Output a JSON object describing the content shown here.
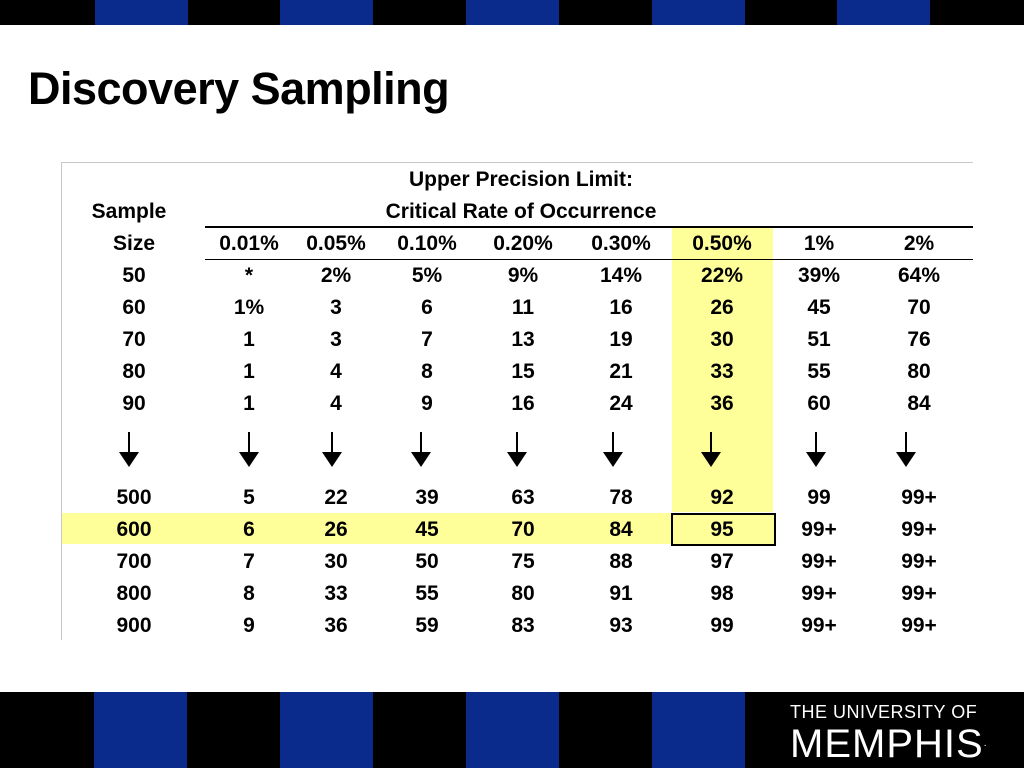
{
  "colors": {
    "black": "#000000",
    "blue": "#0a2a8c",
    "highlight": "#ffff99"
  },
  "title": "Discovery Sampling",
  "table": {
    "header_line1": "Upper Precision Limit:",
    "header_line2": "Critical Rate of Occurrence",
    "sample_label1": "Sample",
    "sample_label2": "Size",
    "rates": [
      "0.01%",
      "0.05%",
      "0.10%",
      "0.20%",
      "0.30%",
      "0.50%",
      "1%",
      "2%"
    ],
    "highlighted_column": "0.50%",
    "highlighted_row": "600",
    "boxed_cell": "95",
    "rows_top": [
      {
        "size": "50",
        "values": [
          "*",
          "2%",
          "5%",
          "9%",
          "14%",
          "22%",
          "39%",
          "64%"
        ]
      },
      {
        "size": "60",
        "values": [
          "1%",
          "3",
          "6",
          "11",
          "16",
          "26",
          "45",
          "70"
        ]
      },
      {
        "size": "70",
        "values": [
          "1",
          "3",
          "7",
          "13",
          "19",
          "30",
          "51",
          "76"
        ]
      },
      {
        "size": "80",
        "values": [
          "1",
          "4",
          "8",
          "15",
          "21",
          "33",
          "55",
          "80"
        ]
      },
      {
        "size": "90",
        "values": [
          "1",
          "4",
          "9",
          "16",
          "24",
          "36",
          "60",
          "84"
        ]
      }
    ],
    "rows_bottom": [
      {
        "size": "500",
        "values": [
          "5",
          "22",
          "39",
          "63",
          "78",
          "92",
          "99",
          "99+"
        ]
      },
      {
        "size": "600",
        "values": [
          "6",
          "26",
          "45",
          "70",
          "84",
          "95",
          "99+",
          "99+"
        ]
      },
      {
        "size": "700",
        "values": [
          "7",
          "30",
          "50",
          "75",
          "88",
          "97",
          "99+",
          "99+"
        ]
      },
      {
        "size": "800",
        "values": [
          "8",
          "33",
          "55",
          "80",
          "91",
          "98",
          "99+",
          "99+"
        ]
      },
      {
        "size": "900",
        "values": [
          "9",
          "36",
          "59",
          "83",
          "93",
          "99",
          "99+",
          "99+"
        ]
      }
    ],
    "continuation_icon": "down-arrow-icon"
  },
  "logo": {
    "line1": "THE UNIVERSITY OF",
    "line2": "MEMPHIS",
    "mark": "."
  }
}
